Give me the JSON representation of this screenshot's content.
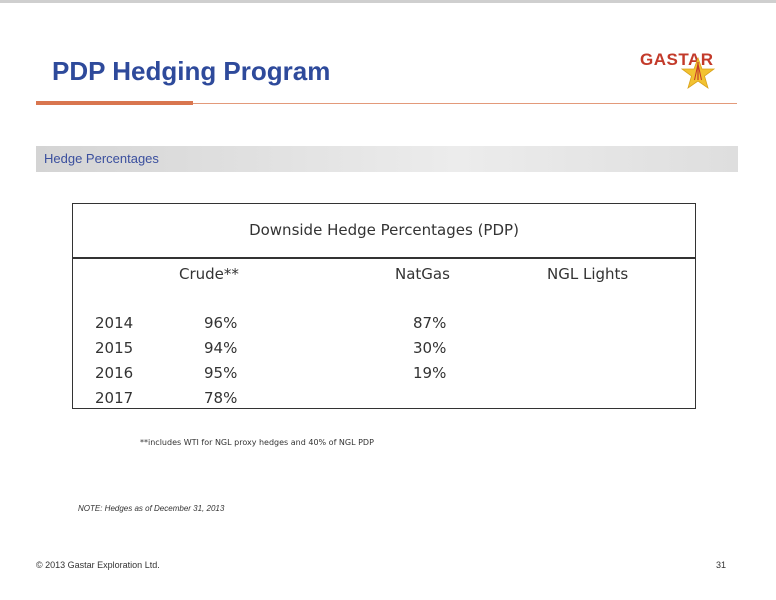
{
  "header": {
    "title": "PDP Hedging Program",
    "logo_text": "GASTAR",
    "logo_icon": "star-derrick-icon",
    "accent_color": "#d9764f",
    "title_color": "#2e4a9b"
  },
  "section": {
    "label": "Hedge Percentages"
  },
  "table": {
    "title": "Downside Hedge Percentages (PDP)",
    "columns": [
      "Crude**",
      "NatGas",
      "NGL Lights"
    ],
    "rows": [
      {
        "year": "2014",
        "crude": "96%",
        "natgas": "87%",
        "ngl": ""
      },
      {
        "year": "2015",
        "crude": "94%",
        "natgas": "30%",
        "ngl": ""
      },
      {
        "year": "2016",
        "crude": "95%",
        "natgas": "19%",
        "ngl": ""
      },
      {
        "year": "2017",
        "crude": "78%",
        "natgas": "",
        "ngl": ""
      }
    ]
  },
  "footnote": "**includes WTI for NGL proxy hedges and 40% of NGL PDP",
  "note": "NOTE: Hedges as of  December 31, 2013",
  "footer": {
    "copyright": "© 2013 Gastar Exploration Ltd.",
    "page_number": "31"
  }
}
